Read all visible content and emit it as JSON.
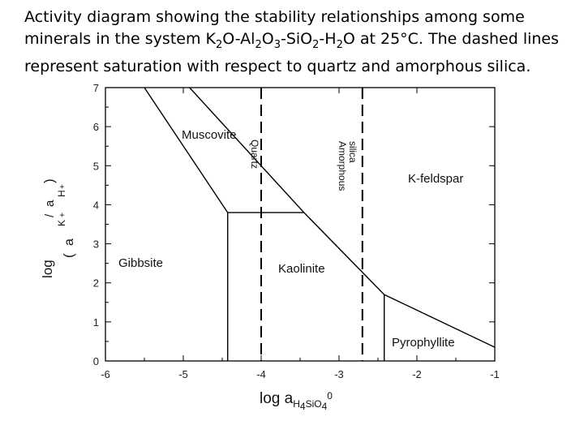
{
  "caption": {
    "p1": "Activity diagram showing the stability relationships among some minerals in the system K",
    "sub1": "2",
    "p2": "O-Al",
    "sub2": "2",
    "p3": "O",
    "sub3": "3",
    "p4": "-SiO",
    "sub4": "2",
    "p5": "-H",
    "sub5": "2",
    "p6": "O at 25°C. The dashed lines represent saturation with respect to quartz and amorphous silica."
  },
  "x_axis": {
    "range": [
      -6,
      -1
    ],
    "ticks": [
      "-6",
      "-5",
      "-4",
      "-3",
      "-2",
      "-1"
    ],
    "title_main": "log a",
    "title_sub": "H",
    "title_sub_4a": "4",
    "title_sub_si": "SiO",
    "title_sub_4b": "4",
    "title_sup": "0"
  },
  "y_axis": {
    "range": [
      0,
      7
    ],
    "ticks": [
      "0",
      "1",
      "2",
      "3",
      "4",
      "5",
      "6",
      "7"
    ],
    "title_fragments": [
      "log",
      "(",
      "a",
      "K",
      "+",
      "/",
      "a",
      "H",
      "+",
      ")"
    ]
  },
  "regions": {
    "muscovite": "Muscovite",
    "kfeldspar": "K-feldspar",
    "gibbsite": "Gibbsite",
    "kaolinite": "Kaolinite",
    "pyrophyllite": "Pyrophyllite"
  },
  "saturation_labels": {
    "quartz": "Quartz",
    "amorphous_silica": [
      "Amorphous",
      "silica"
    ]
  },
  "saturation_lines": {
    "quartz_x": -4,
    "amorphous_silica_x": -2.7
  },
  "boundaries": [
    {
      "name": "muscovite-gibbsite",
      "points": [
        [
          -5.5,
          7
        ],
        [
          -4.43,
          3.8
        ]
      ]
    },
    {
      "name": "gibbsite-kaolinite-horizontal",
      "points": [
        [
          -4.43,
          3.8
        ],
        [
          -3.45,
          3.8
        ]
      ]
    },
    {
      "name": "gibbsite-kaolinite-vertical",
      "points": [
        [
          -4.43,
          3.8
        ],
        [
          -4.43,
          0
        ]
      ]
    },
    {
      "name": "muscovite-kaolinite",
      "points": [
        [
          -4.92,
          7
        ],
        [
          -3.45,
          3.8
        ]
      ]
    },
    {
      "name": "kfeldspar-kaolinite",
      "points": [
        [
          -3.45,
          3.8
        ],
        [
          -2.42,
          1.7
        ]
      ]
    },
    {
      "name": "kfeldspar-pyrophyllite",
      "points": [
        [
          -2.42,
          1.7
        ],
        [
          -1,
          0.35
        ]
      ]
    },
    {
      "name": "kaolinite-pyrophyllite",
      "points": [
        [
          -2.42,
          1.7
        ],
        [
          -2.42,
          0
        ]
      ]
    }
  ]
}
